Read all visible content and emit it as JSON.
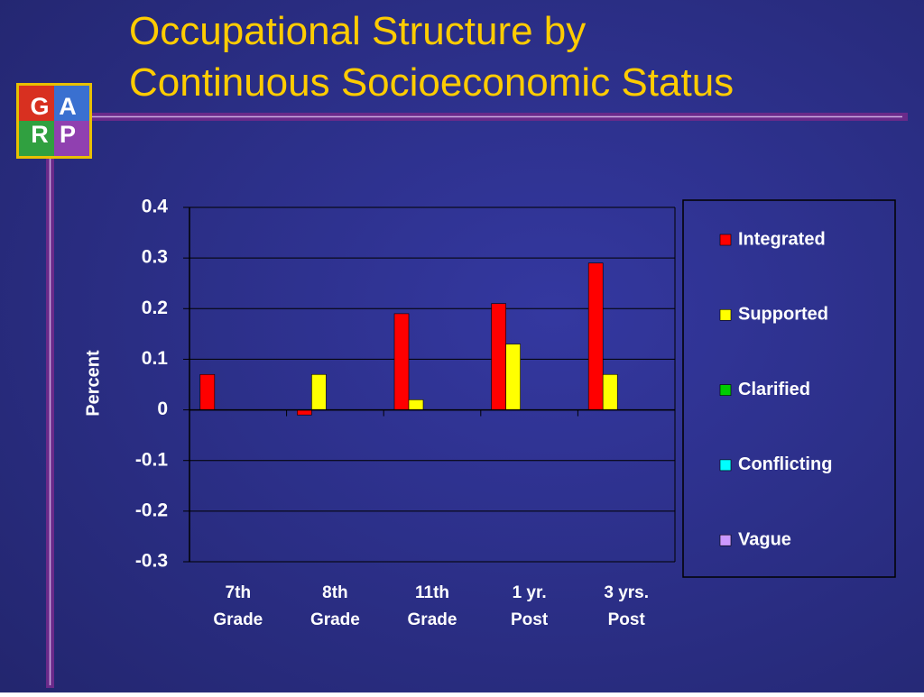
{
  "logo": {
    "letters": [
      "G",
      "A",
      "R",
      "P"
    ]
  },
  "chart_data": {
    "type": "bar",
    "title": "Occupational Structure by Continuous Socioeconomic Status",
    "y_label": "Percent",
    "categories": [
      "7th Grade",
      "8th Grade",
      "11th Grade",
      "1 yr. Post",
      "3 yrs. Post"
    ],
    "series": [
      {
        "name": "Integrated",
        "color": "#ff0000",
        "values": [
          0.07,
          -0.01,
          0.19,
          0.21,
          0.29
        ]
      },
      {
        "name": "Supported",
        "color": "#ffff00",
        "values": [
          0,
          0.07,
          0.02,
          0.13,
          0.07
        ]
      },
      {
        "name": "Clarified",
        "color": "#00cc00",
        "values": [
          null,
          null,
          null,
          null,
          null
        ]
      },
      {
        "name": "Conflicting",
        "color": "#00ffff",
        "values": [
          null,
          null,
          null,
          null,
          null
        ]
      },
      {
        "name": "Vague",
        "color": "#cc99ff",
        "values": [
          null,
          null,
          null,
          null,
          null
        ]
      }
    ],
    "ylim": [
      -0.3,
      0.4
    ],
    "yticks": [
      -0.3,
      -0.2,
      -0.1,
      0,
      0.1,
      0.2,
      0.3,
      0.4
    ],
    "grid": true
  }
}
